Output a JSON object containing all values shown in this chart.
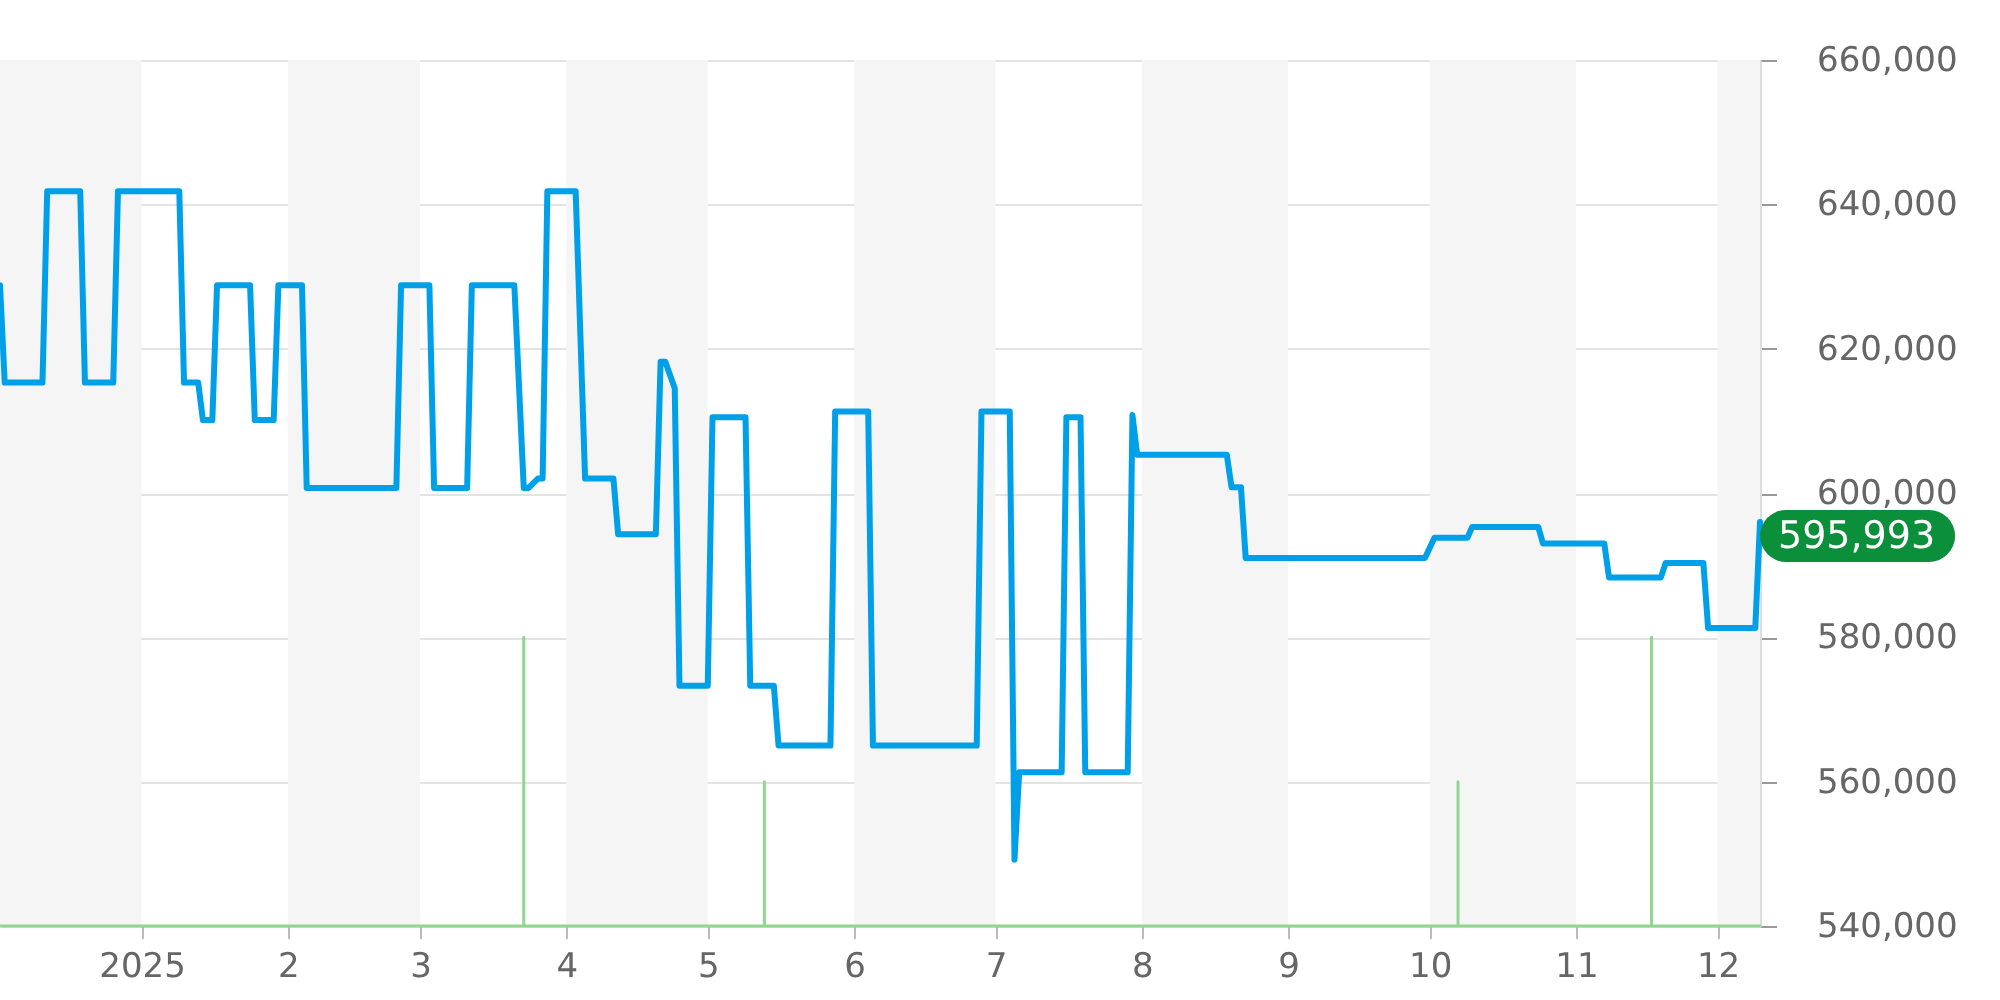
{
  "chart_data": {
    "type": "line",
    "series": [
      {
        "color": "#00a0e9",
        "x": [
          "2024-12-02",
          "2024-12-03",
          "2024-12-11",
          "2024-12-12",
          "2024-12-19",
          "2024-12-20",
          "2024-12-26",
          "2024-12-27",
          "2025-01-09",
          "2025-01-10",
          "2025-01-13",
          "2025-01-14",
          "2025-01-16",
          "2025-01-17",
          "2025-01-24",
          "2025-01-25",
          "2025-01-29",
          "2025-01-30",
          "2025-02-04",
          "2025-02-05",
          "2025-02-24",
          "2025-02-25",
          "2025-03-03",
          "2025-03-04",
          "2025-03-11",
          "2025-03-12",
          "2025-03-21",
          "2025-03-23",
          "2025-03-24",
          "2025-03-26",
          "2025-03-27",
          "2025-03-28",
          "2025-04-03",
          "2025-04-05",
          "2025-04-11",
          "2025-04-12",
          "2025-04-20",
          "2025-04-21",
          "2025-04-22",
          "2025-04-24",
          "2025-04-25",
          "2025-05-01",
          "2025-05-02",
          "2025-05-09",
          "2025-05-10",
          "2025-05-15",
          "2025-05-16",
          "2025-05-27",
          "2025-05-28",
          "2025-06-04",
          "2025-06-05",
          "2025-06-27",
          "2025-06-28",
          "2025-07-04",
          "2025-07-05",
          "2025-07-06",
          "2025-07-15",
          "2025-07-16",
          "2025-07-19",
          "2025-07-20",
          "2025-07-29",
          "2025-07-30",
          "2025-07-31",
          "2025-08-19",
          "2025-08-20",
          "2025-08-22",
          "2025-08-23",
          "2025-09-30",
          "2025-10-02",
          "2025-10-09",
          "2025-10-10",
          "2025-10-24",
          "2025-10-25",
          "2025-11-07",
          "2025-11-08",
          "2025-11-19",
          "2025-11-20",
          "2025-11-28",
          "2025-11-29",
          "2025-12-09",
          "2025-12-10"
        ],
        "values": [
          628800,
          615300,
          615300,
          641800,
          641800,
          615300,
          615300,
          641800,
          641800,
          615300,
          615300,
          610100,
          610100,
          628800,
          628800,
          610100,
          610100,
          628800,
          628800,
          600700,
          600700,
          628800,
          628800,
          600700,
          600700,
          628800,
          628800,
          600700,
          600700,
          602000,
          602000,
          641800,
          641800,
          602000,
          602000,
          594300,
          594300,
          618200,
          618200,
          614500,
          573300,
          573300,
          610500,
          610500,
          573300,
          573300,
          565000,
          565000,
          611300,
          611300,
          565000,
          565000,
          611300,
          611300,
          549200,
          561300,
          561300,
          610500,
          610500,
          561300,
          561300,
          610800,
          605300,
          605300,
          600800,
          600800,
          591000,
          591000,
          593800,
          593800,
          595300,
          595300,
          593000,
          593000,
          588300,
          588300,
          590300,
          590300,
          581300,
          581300,
          595993
        ]
      },
      {
        "type": "line",
        "color": "#8fd68f",
        "x": [
          "2024-12-02",
          "2025-03-23",
          "2025-03-23",
          "2025-03-23",
          "2025-05-13",
          "2025-05-13",
          "2025-05-13",
          "2025-10-07",
          "2025-10-07",
          "2025-10-07",
          "2025-11-17",
          "2025-11-17",
          "2025-11-17",
          "2025-12-10"
        ],
        "values": [
          540000,
          540000,
          580000,
          540000,
          540000,
          560000,
          540000,
          540000,
          560000,
          540000,
          540000,
          580000,
          540000,
          540000
        ]
      }
    ],
    "xlim": [
      "2024-12-02",
      "2025-12-10"
    ],
    "xticks": [
      {
        "value": "2025-01-01",
        "label": "2025"
      },
      {
        "value": "2025-02-01",
        "label": "2"
      },
      {
        "value": "2025-03-01",
        "label": "3"
      },
      {
        "value": "2025-04-01",
        "label": "4"
      },
      {
        "value": "2025-05-01",
        "label": "5"
      },
      {
        "value": "2025-06-01",
        "label": "6"
      },
      {
        "value": "2025-07-01",
        "label": "7"
      },
      {
        "value": "2025-08-01",
        "label": "8"
      },
      {
        "value": "2025-09-01",
        "label": "9"
      },
      {
        "value": "2025-10-01",
        "label": "10"
      },
      {
        "value": "2025-11-01",
        "label": "11"
      },
      {
        "value": "2025-12-01",
        "label": "12"
      }
    ],
    "ylim": [
      540000,
      660000
    ],
    "yticks": [
      {
        "value": 540000,
        "label": "540,000"
      },
      {
        "value": 560000,
        "label": "560,000"
      },
      {
        "value": 580000,
        "label": "580,000"
      },
      {
        "value": 600000,
        "label": "600,000"
      },
      {
        "value": 620000,
        "label": "620,000"
      },
      {
        "value": 640000,
        "label": "640,000"
      },
      {
        "value": 660000,
        "label": "660,000"
      }
    ],
    "grid": "y",
    "bands": [
      {
        "axis": "x",
        "from": "2024-12-02",
        "to": "2025-01-01",
        "color": "#f5f5f5"
      },
      {
        "axis": "x",
        "from": "2025-02-01",
        "to": "2025-03-01",
        "color": "#f5f5f5"
      },
      {
        "axis": "x",
        "from": "2025-04-01",
        "to": "2025-05-01",
        "color": "#f5f5f5"
      },
      {
        "axis": "x",
        "from": "2025-06-01",
        "to": "2025-07-01",
        "color": "#f5f5f5"
      },
      {
        "axis": "x",
        "from": "2025-08-01",
        "to": "2025-09-01",
        "color": "#f5f5f5"
      },
      {
        "axis": "x",
        "from": "2025-10-01",
        "to": "2025-11-01",
        "color": "#f5f5f5"
      },
      {
        "axis": "x",
        "from": "2025-12-01",
        "to": "2025-12-10",
        "color": "#f5f5f5"
      }
    ],
    "annotations": [
      {
        "text": "595,993",
        "x": "2025-12-10",
        "y": 595993
      }
    ]
  }
}
